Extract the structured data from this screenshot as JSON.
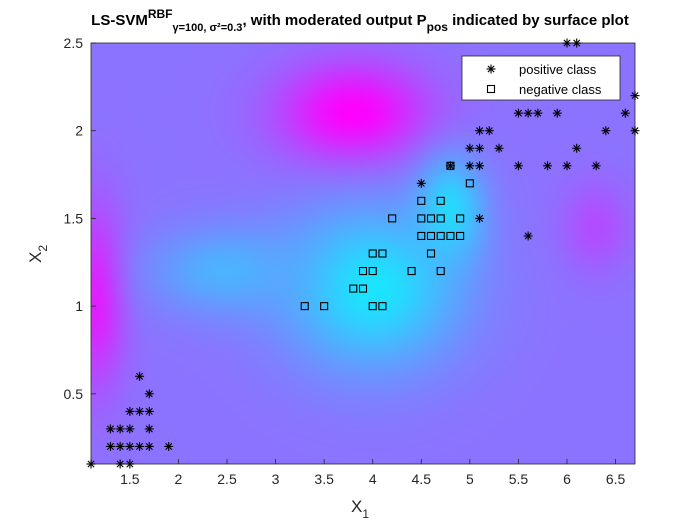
{
  "chart_data": {
    "type": "scatter",
    "title": {
      "prefix": "LS-SVM",
      "superscript": "RBF",
      "subscript": "γ=100, σ²=0.3",
      "middle": ", with moderated output P",
      "subscript2": "pos",
      "suffix": " indicated by surface plot"
    },
    "xlabel": {
      "main": "X",
      "sub": "1"
    },
    "ylabel": {
      "main": "X",
      "sub": "2"
    },
    "xlim": [
      1.1,
      6.7
    ],
    "ylim": [
      0.1,
      2.5
    ],
    "xticks": [
      "1.5",
      "2",
      "2.5",
      "3",
      "3.5",
      "4",
      "4.5",
      "5",
      "5.5",
      "6",
      "6.5"
    ],
    "yticks": [
      "0.5",
      "1",
      "1.5",
      "2",
      "2.5"
    ],
    "legend": {
      "position": "top-right",
      "entries": [
        "positive class",
        "negative class"
      ]
    },
    "surface": {
      "colormap": "cool",
      "base_level": 0.55,
      "peaks": [
        {
          "x": 3.8,
          "y": 2.1,
          "level": 1.0,
          "sx": 0.75,
          "sy": 0.28
        },
        {
          "x": 1.15,
          "y": 1.05,
          "level": 0.9,
          "sx": 0.3,
          "sy": 0.5
        },
        {
          "x": 6.3,
          "y": 1.45,
          "level": 0.7,
          "sx": 0.35,
          "sy": 0.25
        }
      ],
      "valleys": [
        {
          "x": 4.0,
          "y": 1.1,
          "level": 0.1,
          "sx": 0.9,
          "sy": 0.45
        },
        {
          "x": 4.8,
          "y": 1.55,
          "level": 0.15,
          "sx": 0.35,
          "sy": 0.3
        },
        {
          "x": 2.5,
          "y": 1.2,
          "level": 0.3,
          "sx": 0.8,
          "sy": 0.25
        }
      ]
    },
    "series": [
      {
        "name": "positive class",
        "marker": "asterisk",
        "points": [
          [
            1.1,
            0.1
          ],
          [
            1.4,
            0.1
          ],
          [
            1.5,
            0.1
          ],
          [
            1.6,
            0.6
          ],
          [
            1.7,
            0.5
          ],
          [
            1.5,
            0.4
          ],
          [
            1.6,
            0.4
          ],
          [
            1.7,
            0.4
          ],
          [
            1.3,
            0.3
          ],
          [
            1.4,
            0.3
          ],
          [
            1.5,
            0.3
          ],
          [
            1.7,
            0.3
          ],
          [
            1.3,
            0.2
          ],
          [
            1.4,
            0.2
          ],
          [
            1.5,
            0.2
          ],
          [
            1.6,
            0.2
          ],
          [
            1.7,
            0.2
          ],
          [
            1.9,
            0.2
          ],
          [
            4.5,
            1.7
          ],
          [
            4.8,
            1.8
          ],
          [
            5.1,
            1.5
          ],
          [
            5.6,
            1.4
          ],
          [
            5.0,
            1.8
          ],
          [
            5.1,
            1.8
          ],
          [
            5.5,
            1.8
          ],
          [
            5.8,
            1.8
          ],
          [
            6.0,
            1.8
          ],
          [
            6.3,
            1.8
          ],
          [
            5.0,
            1.9
          ],
          [
            5.1,
            1.9
          ],
          [
            5.3,
            1.9
          ],
          [
            6.1,
            1.9
          ],
          [
            5.1,
            2.0
          ],
          [
            5.2,
            2.0
          ],
          [
            6.4,
            2.0
          ],
          [
            6.7,
            2.0
          ],
          [
            5.5,
            2.1
          ],
          [
            5.6,
            2.1
          ],
          [
            5.7,
            2.1
          ],
          [
            5.9,
            2.1
          ],
          [
            6.6,
            2.1
          ],
          [
            6.7,
            2.2
          ],
          [
            6.0,
            2.5
          ],
          [
            6.1,
            2.5
          ]
        ]
      },
      {
        "name": "negative class",
        "marker": "square",
        "points": [
          [
            3.3,
            1.0
          ],
          [
            3.5,
            1.0
          ],
          [
            4.0,
            1.0
          ],
          [
            4.1,
            1.0
          ],
          [
            3.8,
            1.1
          ],
          [
            3.9,
            1.1
          ],
          [
            3.9,
            1.2
          ],
          [
            4.0,
            1.2
          ],
          [
            4.4,
            1.2
          ],
          [
            4.7,
            1.2
          ],
          [
            4.0,
            1.3
          ],
          [
            4.1,
            1.3
          ],
          [
            4.6,
            1.3
          ],
          [
            4.5,
            1.4
          ],
          [
            4.6,
            1.4
          ],
          [
            4.7,
            1.4
          ],
          [
            4.8,
            1.4
          ],
          [
            4.9,
            1.4
          ],
          [
            4.2,
            1.5
          ],
          [
            4.5,
            1.5
          ],
          [
            4.6,
            1.5
          ],
          [
            4.7,
            1.5
          ],
          [
            4.9,
            1.5
          ],
          [
            4.5,
            1.6
          ],
          [
            4.7,
            1.6
          ],
          [
            5.0,
            1.7
          ],
          [
            4.8,
            1.8
          ]
        ]
      }
    ]
  }
}
